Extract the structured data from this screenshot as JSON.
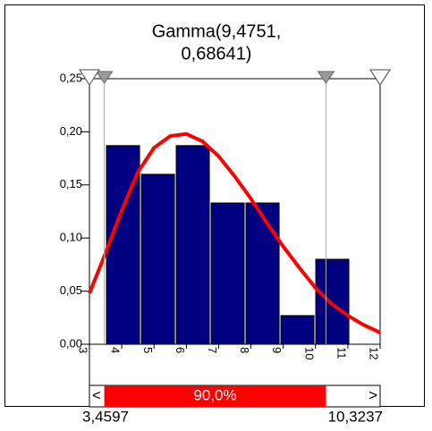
{
  "chart_data": {
    "type": "histogram",
    "title": [
      "Gamma(9,4751,",
      "0,68641)"
    ],
    "bins": [
      3.5,
      4.58,
      5.66,
      6.74,
      7.82,
      8.9,
      9.98,
      11.06
    ],
    "values": [
      0.187,
      0.16,
      0.187,
      0.133,
      0.133,
      0.027,
      0.08
    ],
    "color": "#000080",
    "curve": {
      "color": "#ff0000",
      "x": [
        3,
        3.5,
        4,
        4.5,
        5,
        5.5,
        6,
        6.5,
        7,
        7.5,
        8,
        8.5,
        9,
        9.5,
        10,
        10.5,
        11,
        11.5,
        12
      ],
      "values": [
        0.048,
        0.086,
        0.126,
        0.162,
        0.185,
        0.196,
        0.198,
        0.191,
        0.177,
        0.158,
        0.137,
        0.114,
        0.092,
        0.072,
        0.053,
        0.038,
        0.027,
        0.018,
        0.011
      ]
    },
    "xlim": [
      3,
      12
    ],
    "xticks": [
      3,
      4,
      5,
      6,
      7,
      8,
      9,
      10,
      11,
      12
    ],
    "ylim": [
      0,
      0.25
    ],
    "yticks": [
      {
        "value": 0,
        "label": "0,00"
      },
      {
        "value": 0.05,
        "label": "0,05"
      },
      {
        "value": 0.1,
        "label": "0,10"
      },
      {
        "value": 0.15,
        "label": "0,15"
      },
      {
        "value": 0.2,
        "label": "0,20"
      },
      {
        "value": 0.25,
        "label": "0,25"
      }
    ],
    "delimiters": [
      {
        "value": 3.4597,
        "label": "3,4597"
      },
      {
        "value": 10.3237,
        "label": "10,3237"
      }
    ],
    "probability": {
      "value": 90.0,
      "label": "90,0%",
      "color": "#ff0000"
    },
    "nav": [
      "<",
      ">"
    ]
  }
}
